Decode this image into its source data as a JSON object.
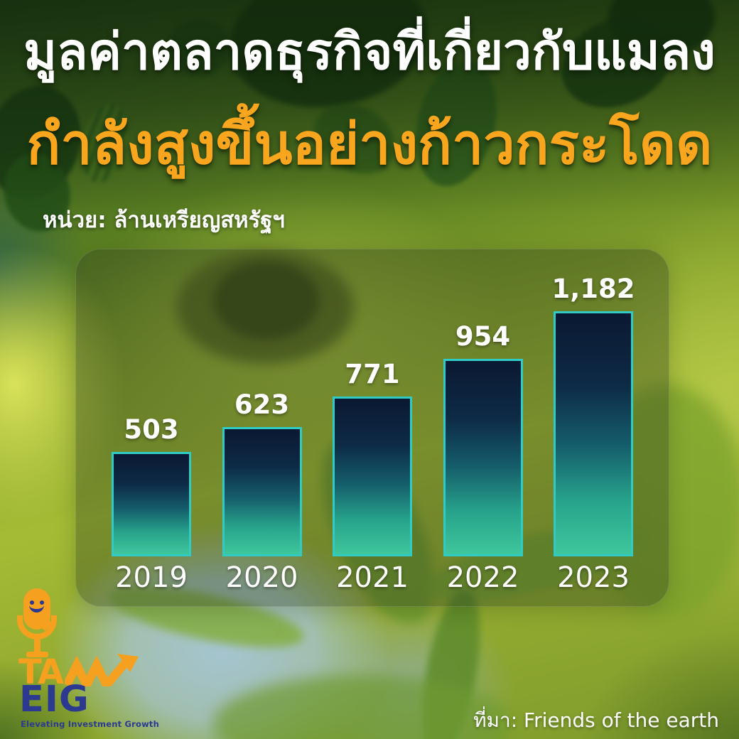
{
  "header": {
    "title_line1": "มูลค่าตลาดธุรกิจที่เกี่ยวกับแมลง",
    "title_line2": "กำลังสูงขึ้นอย่างก้าวกระโดด",
    "unit_label": "หน่วย: ล้านเหรียญสหรัฐฯ"
  },
  "chart_data": {
    "type": "bar",
    "title": "มูลค่าตลาดธุรกิจที่เกี่ยวกับแมลง กำลังสูงขึ้นอย่างก้าวกระโดด",
    "unit": "ล้านเหรียญสหรัฐฯ",
    "categories": [
      "2019",
      "2020",
      "2021",
      "2022",
      "2023"
    ],
    "values": [
      503,
      623,
      771,
      954,
      1182
    ],
    "value_labels": [
      "503",
      "623",
      "771",
      "954",
      "1,182"
    ],
    "ylim": [
      0,
      1182
    ],
    "grid": false,
    "legend": false,
    "bar_border_color": "#31CBC6",
    "bar_gradient_top": "#0B1832",
    "bar_gradient_bottom": "#3FC79C",
    "label_color": "#FFFFFF"
  },
  "footer": {
    "source_label": "ที่มา: Friends of the earth"
  },
  "logo": {
    "icon": "microphone-smiley-icon",
    "brand_top": "TA",
    "brand_arrow_icon": "zigzag-growth-arrow-icon",
    "brand_bottom": "EIG",
    "tagline": "Elevating Investment Growth",
    "orange": "#F5A01F",
    "blue": "#2B3990"
  },
  "colors": {
    "headline_white": "#FFFFFF",
    "headline_orange": "#F9A51D",
    "panel_tint": "rgba(38,52,28,0.34)"
  }
}
